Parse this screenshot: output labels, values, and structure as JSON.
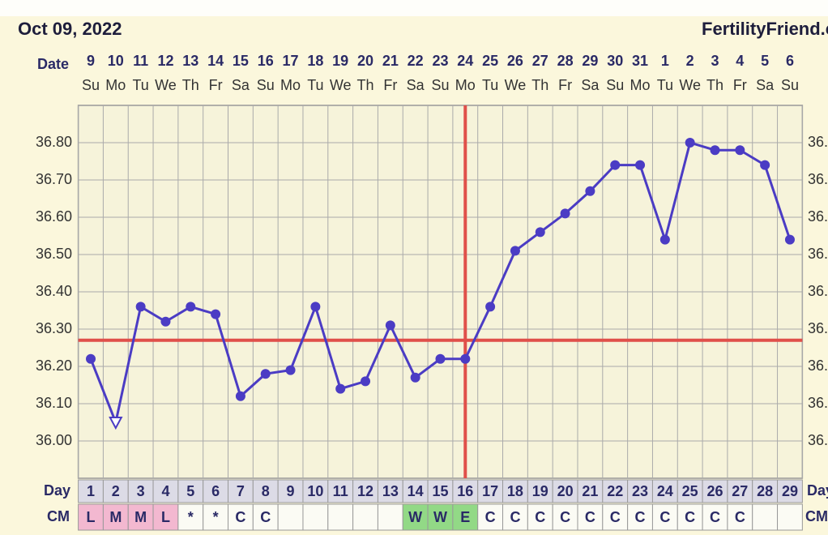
{
  "header": {
    "date": "Oct 09, 2022",
    "site": "FertilityFriend.com"
  },
  "chart_data": {
    "type": "line",
    "x_label": "Date",
    "categories": [
      "9",
      "10",
      "11",
      "12",
      "13",
      "14",
      "15",
      "16",
      "17",
      "18",
      "19",
      "20",
      "21",
      "22",
      "23",
      "24",
      "25",
      "26",
      "27",
      "28",
      "29",
      "30",
      "31",
      "1",
      "2",
      "3",
      "4",
      "5",
      "6"
    ],
    "weekdays": [
      "Su",
      "Mo",
      "Tu",
      "We",
      "Th",
      "Fr",
      "Sa",
      "Su",
      "Mo",
      "Tu",
      "We",
      "Th",
      "Fr",
      "Sa",
      "Su",
      "Mo",
      "Tu",
      "We",
      "Th",
      "Fr",
      "Sa",
      "Su",
      "Mo",
      "Tu",
      "We",
      "Th",
      "Fr",
      "Sa",
      "Su"
    ],
    "values": [
      36.22,
      36.05,
      36.36,
      36.32,
      36.36,
      36.34,
      36.12,
      36.18,
      36.19,
      36.36,
      36.14,
      36.16,
      36.31,
      36.17,
      36.22,
      36.22,
      36.36,
      36.51,
      36.56,
      36.61,
      36.67,
      36.74,
      36.74,
      36.54,
      36.8,
      36.78,
      36.78,
      36.74,
      36.54
    ],
    "color": "#4b3cc4",
    "open_markers": [
      1
    ],
    "coverline": 36.27,
    "coverline_color": "#e0504a",
    "ovulation_day": 16,
    "ylim": [
      35.9,
      36.9
    ],
    "yticks": [
      {
        "value": 36.0,
        "label": "36.00"
      },
      {
        "value": 36.1,
        "label": "36.10"
      },
      {
        "value": 36.2,
        "label": "36.20"
      },
      {
        "value": 36.3,
        "label": "36.30"
      },
      {
        "value": 36.4,
        "label": "36.40"
      },
      {
        "value": 36.5,
        "label": "36.50"
      },
      {
        "value": 36.6,
        "label": "36.60"
      },
      {
        "value": 36.7,
        "label": "36.70"
      },
      {
        "value": 36.8,
        "label": "36.80"
      }
    ],
    "grid": true,
    "cycle_day_label": "Day",
    "cycle_days": [
      1,
      2,
      3,
      4,
      5,
      6,
      7,
      8,
      9,
      10,
      11,
      12,
      13,
      14,
      15,
      16,
      17,
      18,
      19,
      20,
      21,
      22,
      23,
      24,
      25,
      26,
      27,
      28,
      29
    ],
    "cm_label": "CM",
    "cm": [
      "L",
      "M",
      "M",
      "L",
      "*",
      "*",
      "C",
      "C",
      null,
      null,
      null,
      null,
      null,
      "W",
      "W",
      "E",
      "C",
      "C",
      "C",
      "C",
      "C",
      "C",
      "C",
      "C",
      "C",
      "C",
      "C",
      null,
      null
    ],
    "cm_colors": {
      "L": "#f3b8d0",
      "M": "#f3b8d0",
      "W": "#92d986",
      "E": "#92d986"
    }
  }
}
